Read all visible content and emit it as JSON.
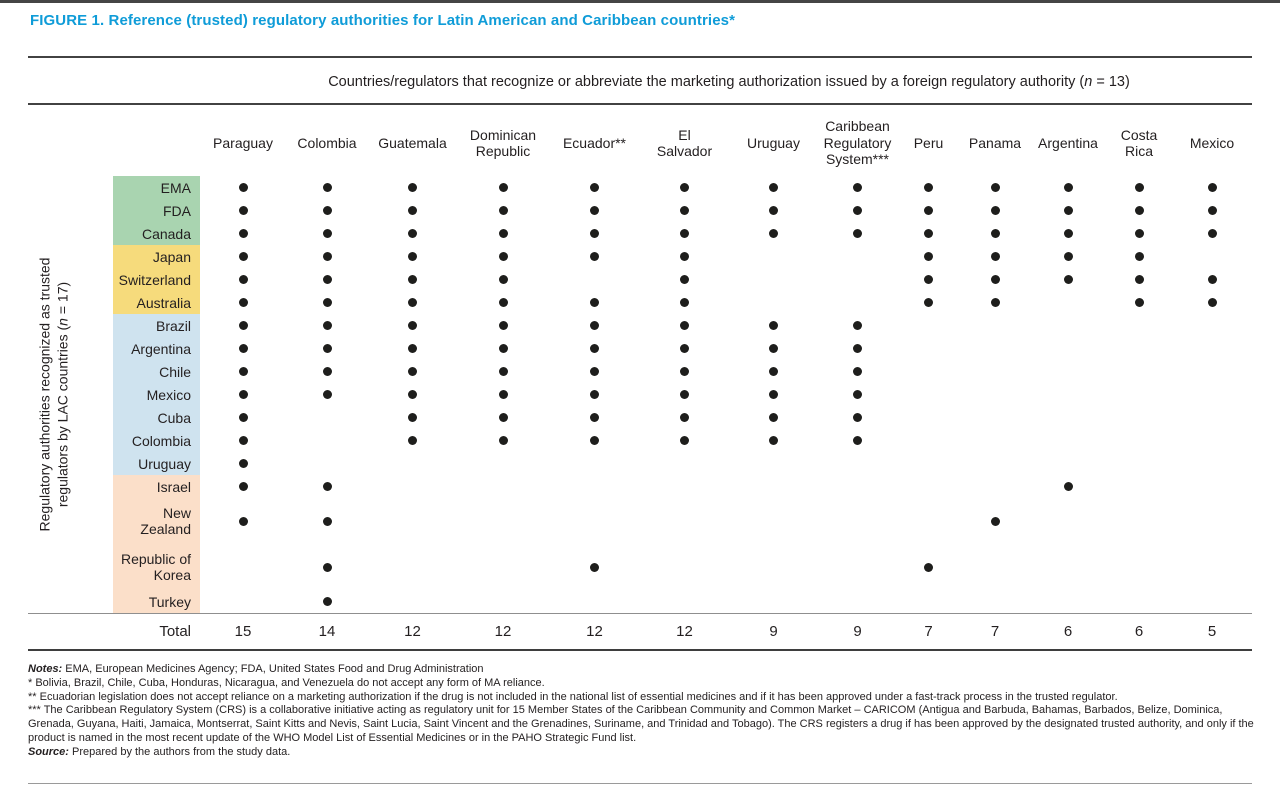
{
  "figure": {
    "title": "FIGURE 1. Reference (trusted) regulatory authorities for Latin American and Caribbean countries*",
    "column_axis_header": {
      "pre": "Countries/regulators that recognize or abbreviate the marketing authorization issued by a foreign regulatory authority (",
      "var": "n",
      "post": " = 13)"
    },
    "row_axis_label": {
      "line1": "Regulatory authorities recognized as trusted",
      "line2_pre": "regulators by LAC countries (",
      "var": "n",
      "line2_post": " = 17)"
    }
  },
  "colors": {
    "title_blue": "#0f9cd8",
    "group_green": "#a9d4b0",
    "group_yellow": "#f6db7c",
    "group_blue": "#cfe3ef",
    "group_peach": "#fbdfc9",
    "dot": "#1e1e1c"
  },
  "chart_data": {
    "type": "table",
    "title": "FIGURE 1. Reference (trusted) regulatory authorities for Latin American and Caribbean countries*",
    "x_axis_title": "Countries/regulators that recognize or abbreviate the marketing authorization issued by a foreign regulatory authority (n = 13)",
    "y_axis_title": "Regulatory authorities recognized as trusted regulators by LAC countries (n = 17)",
    "columns": [
      "Paraguay",
      "Colombia",
      "Guatemala",
      "Dominican\nRepublic",
      "Ecuador**",
      "El\nSalvador",
      "Uruguay",
      "Caribbean\nRegulatory\nSystem***",
      "Peru",
      "Panama",
      "Argentina",
      "Costa\nRica",
      "Mexico"
    ],
    "rows": [
      {
        "label": "EMA",
        "group": "group_green",
        "dots": [
          1,
          1,
          1,
          1,
          1,
          1,
          1,
          1,
          1,
          1,
          1,
          1,
          1
        ]
      },
      {
        "label": "FDA",
        "group": "group_green",
        "dots": [
          1,
          1,
          1,
          1,
          1,
          1,
          1,
          1,
          1,
          1,
          1,
          1,
          1
        ]
      },
      {
        "label": "Canada",
        "group": "group_green",
        "dots": [
          1,
          1,
          1,
          1,
          1,
          1,
          1,
          1,
          1,
          1,
          1,
          1,
          1
        ]
      },
      {
        "label": "Japan",
        "group": "group_yellow",
        "dots": [
          1,
          1,
          1,
          1,
          1,
          1,
          0,
          0,
          1,
          1,
          1,
          1,
          0
        ]
      },
      {
        "label": "Switzerland",
        "group": "group_yellow",
        "dots": [
          1,
          1,
          1,
          1,
          0,
          1,
          0,
          0,
          1,
          1,
          1,
          1,
          1
        ]
      },
      {
        "label": "Australia",
        "group": "group_yellow",
        "dots": [
          1,
          1,
          1,
          1,
          1,
          1,
          0,
          0,
          1,
          1,
          0,
          1,
          1
        ]
      },
      {
        "label": "Brazil",
        "group": "group_blue",
        "dots": [
          1,
          1,
          1,
          1,
          1,
          1,
          1,
          1,
          0,
          0,
          0,
          0,
          0
        ]
      },
      {
        "label": "Argentina",
        "group": "group_blue",
        "dots": [
          1,
          1,
          1,
          1,
          1,
          1,
          1,
          1,
          0,
          0,
          0,
          0,
          0
        ]
      },
      {
        "label": "Chile",
        "group": "group_blue",
        "dots": [
          1,
          1,
          1,
          1,
          1,
          1,
          1,
          1,
          0,
          0,
          0,
          0,
          0
        ]
      },
      {
        "label": "Mexico",
        "group": "group_blue",
        "dots": [
          1,
          1,
          1,
          1,
          1,
          1,
          1,
          1,
          0,
          0,
          0,
          0,
          0
        ]
      },
      {
        "label": "Cuba",
        "group": "group_blue",
        "dots": [
          1,
          0,
          1,
          1,
          1,
          1,
          1,
          1,
          0,
          0,
          0,
          0,
          0
        ]
      },
      {
        "label": "Colombia",
        "group": "group_blue",
        "dots": [
          1,
          0,
          1,
          1,
          1,
          1,
          1,
          1,
          0,
          0,
          0,
          0,
          0
        ]
      },
      {
        "label": "Uruguay",
        "group": "group_blue",
        "dots": [
          1,
          0,
          0,
          0,
          0,
          0,
          0,
          0,
          0,
          0,
          0,
          0,
          0
        ]
      },
      {
        "label": "Israel",
        "group": "group_peach",
        "dots": [
          1,
          1,
          0,
          0,
          0,
          0,
          0,
          0,
          0,
          0,
          1,
          0,
          0
        ]
      },
      {
        "label": "New Zealand",
        "group": "group_peach",
        "tall": true,
        "dots": [
          1,
          1,
          0,
          0,
          0,
          0,
          0,
          0,
          0,
          1,
          0,
          0,
          0
        ]
      },
      {
        "label": "Republic of Korea",
        "group": "group_peach",
        "tall": true,
        "dots": [
          0,
          1,
          0,
          0,
          1,
          0,
          0,
          0,
          1,
          0,
          0,
          0,
          0
        ]
      },
      {
        "label": "Turkey",
        "group": "group_peach",
        "dots": [
          0,
          1,
          0,
          0,
          0,
          0,
          0,
          0,
          0,
          0,
          0,
          0,
          0
        ]
      }
    ],
    "total_label": "Total",
    "totals": [
      15,
      14,
      12,
      12,
      12,
      12,
      9,
      9,
      7,
      7,
      6,
      6,
      5
    ]
  },
  "notes": [
    {
      "label": "Notes:",
      "text": "EMA, European Medicines Agency; FDA, United States Food and Drug Administration"
    },
    {
      "label": "",
      "text": "* Bolivia, Brazil, Chile, Cuba, Honduras, Nicaragua, and Venezuela do not accept any form of MA reliance."
    },
    {
      "label": "",
      "text": "** Ecuadorian legislation does not accept reliance on a marketing authorization if the drug is not included in the national list of essential medicines and if it has been approved under a fast-track process in the trusted regulator."
    },
    {
      "label": "",
      "text": "*** The Caribbean Regulatory System (CRS) is a collaborative initiative acting as regulatory unit for 15 Member States of the Caribbean Community and Common Market – CARICOM (Antigua and Barbuda, Bahamas, Barbados, Belize, Dominica, Grenada, Guyana, Haiti, Jamaica, Montserrat, Saint Kitts and Nevis, Saint Lucia, Saint Vincent and the Grenadines, Suriname, and Trinidad and Tobago). The CRS registers a drug if has been approved by the designated trusted authority, and only if the product is named in the most recent update of the WHO Model List of Essential Medicines or in the PAHO Strategic Fund list."
    },
    {
      "label": "Source:",
      "text": "Prepared by the authors from the study data."
    }
  ]
}
